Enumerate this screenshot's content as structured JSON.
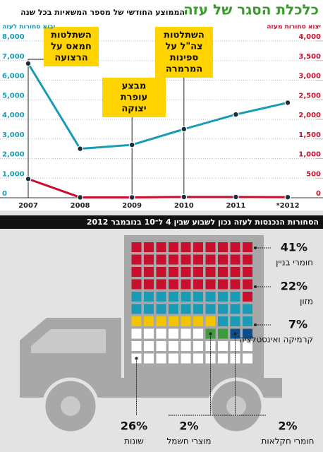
{
  "chart_data": [
    {
      "type": "line",
      "title": "כלכלת הסגר של עזה",
      "subtitle": "הממוצע החודשי של מספר המשאיות בכל שנה",
      "categories": [
        "2007",
        "2008",
        "2009",
        "2010",
        "2011",
        "*2012"
      ],
      "series": [
        {
          "name": "יבוא סחורות לעזה",
          "color": "#1a9bb5",
          "values": [
            6850,
            2500,
            2700,
            3500,
            4250,
            4850
          ]
        },
        {
          "name": "יצוא סחורות מעזה",
          "color": "#c8102e",
          "axis": "y2",
          "values": [
            480,
            10,
            10,
            20,
            20,
            15
          ]
        }
      ],
      "ylim": [
        0,
        8000
      ],
      "yticks": [
        0,
        {
          "value": 1000,
          "label": "1,000"
        },
        {
          "value": 2000,
          "label": "2,000"
        },
        {
          "value": 3000,
          "label": "3,000"
        },
        {
          "value": 4000,
          "label": "4,000"
        },
        {
          "value": 5000,
          "label": "5,000"
        },
        {
          "value": 6000,
          "label": "6,000"
        },
        {
          "value": 7000,
          "label": "7,000"
        },
        {
          "value": 8000,
          "label": "8,000"
        }
      ],
      "y2lim": [
        0,
        4000
      ],
      "y2ticks": [
        0,
        500,
        {
          "value": 1000,
          "label": "1,000"
        },
        {
          "value": 1500,
          "label": "1,500"
        },
        {
          "value": 2000,
          "label": "2,000"
        },
        {
          "value": 2500,
          "label": "2,500"
        },
        {
          "value": 3000,
          "label": "3,000"
        },
        {
          "value": 3500,
          "label": "3,500"
        },
        {
          "value": 4000,
          "label": "4,000"
        }
      ],
      "grid": true,
      "annotations": [
        {
          "x": "2007",
          "lines": [
            "השתלטות",
            "חמאס על",
            "הרצועה"
          ]
        },
        {
          "x": "2009",
          "lines": [
            "מבצע",
            "עופרת",
            "יצוקה"
          ]
        },
        {
          "x": "2010",
          "lines": [
            "השתלטות",
            "צה\"ל על",
            "ספינות",
            "המרמרה"
          ]
        }
      ]
    },
    {
      "type": "waffle",
      "title": "הסחורות הנכנסות לעזה נכון לשבוע שבין 4 ל־10 בנובמבר 2012",
      "categories": [
        "חומרי בניין",
        "מזון",
        "קרמיקה ואינסטלציה",
        "מוצרי חשמל",
        "חומרי חקלאות",
        "שונות"
      ],
      "values": [
        41,
        22,
        7,
        2,
        2,
        26
      ],
      "value_labels": [
        "41%",
        "22%",
        "7%",
        "2%",
        "2%",
        "26%"
      ],
      "colors": [
        "#c8102e",
        "#1a9bb5",
        "#f5c400",
        "#0b4f8a",
        "#3d9a3d",
        "#ffffff"
      ]
    }
  ]
}
